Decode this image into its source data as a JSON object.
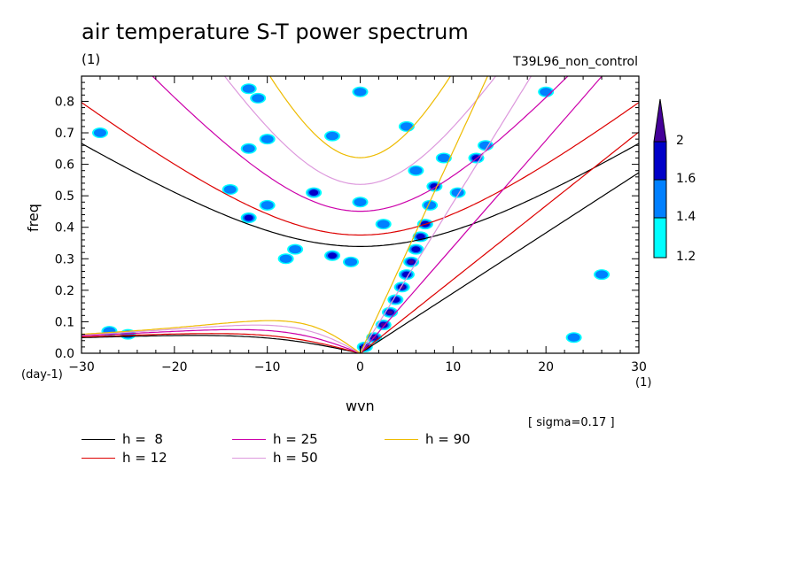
{
  "title": "air temperature S-T power spectrum",
  "subtitle": "(1)",
  "run_label": "T39L96_non_control",
  "xunit": "(1)",
  "yunit": "(day-1)",
  "note": "[ sigma=0.17 ]",
  "colors": {
    "h8": "#000000",
    "h12": "#dd0000",
    "h25": "#cc00aa",
    "h50": "#dd99dd",
    "h90": "#eebb00",
    "c12": "#00ffff",
    "c14": "#0080ff",
    "c16": "#0000c8",
    "c20": "#440099"
  },
  "chart_data": {
    "type": "heatmap",
    "title": "air temperature S-T power spectrum",
    "xlabel": "wvn",
    "ylabel": "freq",
    "xlim": [
      -30,
      30
    ],
    "ylim": [
      0,
      0.88
    ],
    "xticks": [
      "-30",
      "-20",
      "-10",
      "0",
      "10",
      "20",
      "30"
    ],
    "yticks": [
      "0.0",
      "0.1",
      "0.2",
      "0.3",
      "0.4",
      "0.5",
      "0.6",
      "0.7",
      "0.8"
    ],
    "legend": [
      {
        "label": "h =  8",
        "key": "h8"
      },
      {
        "label": "h = 12",
        "key": "h12"
      },
      {
        "label": "h = 25",
        "key": "h25"
      },
      {
        "label": "h = 50",
        "key": "h50"
      },
      {
        "label": "h = 90",
        "key": "h90"
      }
    ],
    "colorbar_levels": [
      "1.2",
      "1.4",
      "1.6",
      "2"
    ],
    "dispersion_h": [
      8,
      12,
      25,
      50,
      90
    ],
    "spectral_blobs": [
      {
        "x": 0.5,
        "y": 0.02,
        "level": 3
      },
      {
        "x": 1.5,
        "y": 0.05,
        "level": 3
      },
      {
        "x": 2.5,
        "y": 0.09,
        "level": 3
      },
      {
        "x": 3.2,
        "y": 0.13,
        "level": 3
      },
      {
        "x": 3.8,
        "y": 0.17,
        "level": 2
      },
      {
        "x": 4.5,
        "y": 0.21,
        "level": 3
      },
      {
        "x": 5.0,
        "y": 0.25,
        "level": 2
      },
      {
        "x": 5.5,
        "y": 0.29,
        "level": 3
      },
      {
        "x": 6.0,
        "y": 0.33,
        "level": 2
      },
      {
        "x": 6.5,
        "y": 0.37,
        "level": 2
      },
      {
        "x": 7.0,
        "y": 0.41,
        "level": 2
      },
      {
        "x": 7.5,
        "y": 0.47,
        "level": 1
      },
      {
        "x": 8.0,
        "y": 0.53,
        "level": 2
      },
      {
        "x": 6.0,
        "y": 0.58,
        "level": 1
      },
      {
        "x": 9.0,
        "y": 0.62,
        "level": 1
      },
      {
        "x": 10.5,
        "y": 0.51,
        "level": 1
      },
      {
        "x": 12.5,
        "y": 0.62,
        "level": 2
      },
      {
        "x": 13.5,
        "y": 0.66,
        "level": 1
      },
      {
        "x": -12,
        "y": 0.43,
        "level": 2
      },
      {
        "x": -10,
        "y": 0.47,
        "level": 1
      },
      {
        "x": -14,
        "y": 0.52,
        "level": 1
      },
      {
        "x": -5,
        "y": 0.51,
        "level": 2
      },
      {
        "x": 0,
        "y": 0.48,
        "level": 1
      },
      {
        "x": 2.5,
        "y": 0.41,
        "level": 1
      },
      {
        "x": -7,
        "y": 0.33,
        "level": 1
      },
      {
        "x": -3,
        "y": 0.31,
        "level": 2
      },
      {
        "x": -1,
        "y": 0.29,
        "level": 1
      },
      {
        "x": -8,
        "y": 0.3,
        "level": 1
      },
      {
        "x": -10,
        "y": 0.68,
        "level": 1
      },
      {
        "x": -12,
        "y": 0.65,
        "level": 1
      },
      {
        "x": -3,
        "y": 0.69,
        "level": 1
      },
      {
        "x": 5,
        "y": 0.72,
        "level": 1
      },
      {
        "x": -28,
        "y": 0.7,
        "level": 1
      },
      {
        "x": -27,
        "y": 0.07,
        "level": 1
      },
      {
        "x": -25,
        "y": 0.06,
        "level": 1
      },
      {
        "x": -12,
        "y": 0.84,
        "level": 1
      },
      {
        "x": -11,
        "y": 0.81,
        "level": 1
      },
      {
        "x": 0,
        "y": 0.83,
        "level": 1
      },
      {
        "x": 20,
        "y": 0.83,
        "level": 1
      },
      {
        "x": 26,
        "y": 0.25,
        "level": 1
      },
      {
        "x": 23,
        "y": 0.05,
        "level": 1
      }
    ]
  }
}
